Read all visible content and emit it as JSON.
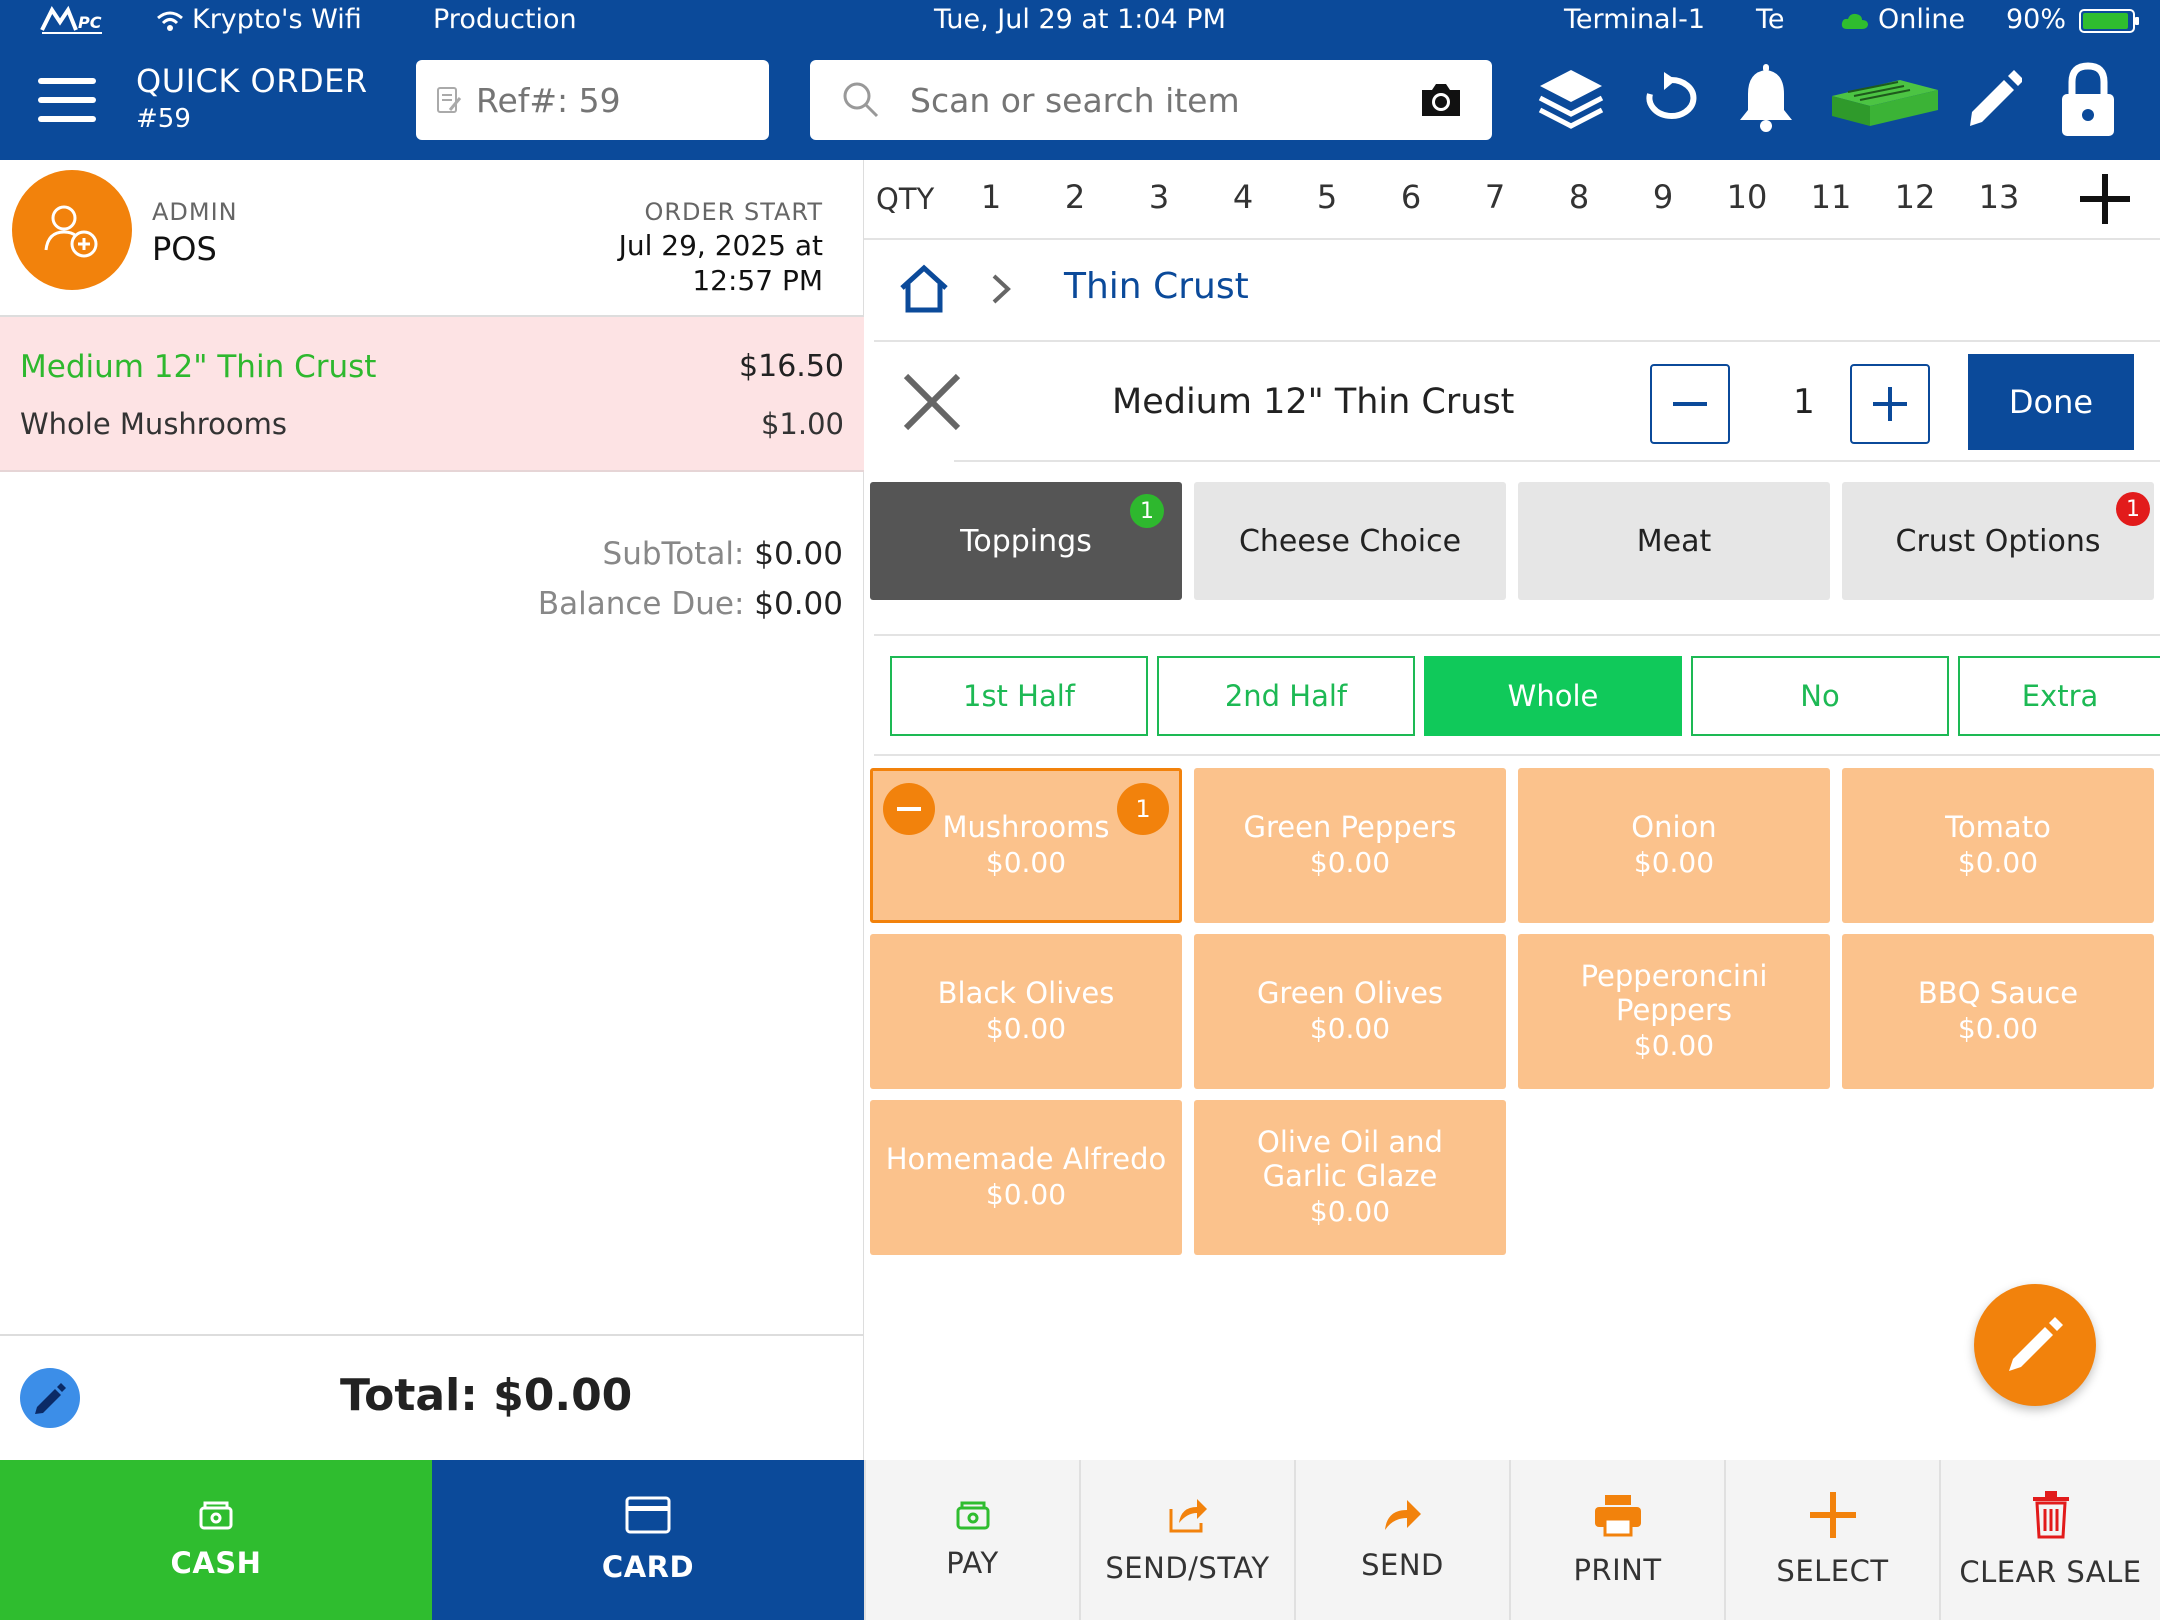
{
  "status_bar": {
    "wifi_name": "Krypto's Wifi",
    "environment": "Production",
    "datetime": "Tue, Jul 29 at 1:04 PM",
    "terminal": "Terminal-1",
    "terminal_truncated": "Te",
    "connection": "Online",
    "battery": "90%"
  },
  "header": {
    "title": "QUICK ORDER",
    "order_number": "#59",
    "ref_placeholder": "Ref#: 59",
    "search_placeholder": "Scan or search item"
  },
  "order_info": {
    "role": "ADMIN",
    "user": "POS",
    "start_label": "ORDER START",
    "start_date": "Jul 29, 2025 at 12:57 PM"
  },
  "order_items": [
    {
      "name": "Medium 12\" Thin Crust",
      "price": "$16.50",
      "modifier": "Whole Mushrooms",
      "modifier_price": "$1.00"
    }
  ],
  "totals": {
    "subtotal_label": "SubTotal:",
    "subtotal": "$0.00",
    "balance_label": "Balance Due:",
    "balance": "$0.00",
    "total_text": "Total: $0.00"
  },
  "qty_bar": {
    "label": "QTY",
    "numbers": [
      "1",
      "2",
      "3",
      "4",
      "5",
      "6",
      "7",
      "8",
      "9",
      "10",
      "11",
      "12",
      "13"
    ]
  },
  "breadcrumb": {
    "current": "Thin Crust"
  },
  "product": {
    "title": "Medium 12\" Thin Crust",
    "quantity": "1",
    "done_label": "Done"
  },
  "categories": [
    {
      "label": "Toppings",
      "active": true,
      "badge": "1",
      "badge_color": "#2eb82e"
    },
    {
      "label": "Cheese Choice",
      "active": false,
      "badge": "",
      "badge_color": ""
    },
    {
      "label": "Meat",
      "active": false,
      "badge": "",
      "badge_color": ""
    },
    {
      "label": "Crust Options",
      "active": false,
      "badge": "1",
      "badge_color": "#e21b1b"
    }
  ],
  "modes": [
    {
      "label": "1st Half",
      "active": false
    },
    {
      "label": "2nd Half",
      "active": false
    },
    {
      "label": "Whole",
      "active": true
    },
    {
      "label": "No",
      "active": false
    },
    {
      "label": "Extra",
      "active": false
    }
  ],
  "toppings": [
    {
      "name": "Mushrooms",
      "price": "$0.00",
      "selected": true,
      "count": "1"
    },
    {
      "name": "Green Peppers",
      "price": "$0.00"
    },
    {
      "name": "Onion",
      "price": "$0.00"
    },
    {
      "name": "Tomato",
      "price": "$0.00"
    },
    {
      "name": "Black Olives",
      "price": "$0.00"
    },
    {
      "name": "Green Olives",
      "price": "$0.00"
    },
    {
      "name": "Pepperoncini Peppers",
      "price": "$0.00"
    },
    {
      "name": "BBQ Sauce",
      "price": "$0.00"
    },
    {
      "name": "Homemade Alfredo",
      "price": "$0.00"
    },
    {
      "name": "Olive Oil and Garlic Glaze",
      "price": "$0.00"
    }
  ],
  "bottom_bar": {
    "cash": "CASH",
    "card": "CARD",
    "pay": "PAY",
    "send_stay": "SEND/STAY",
    "send": "SEND",
    "print": "PRINT",
    "select": "SELECT",
    "clear_sale": "CLEAR SALE"
  },
  "colors": {
    "brand_blue": "#0b4a9a",
    "accent_orange": "#f2820c",
    "tile_orange": "#fbc28c",
    "cash_green": "#2fbd2f",
    "mode_green": "#10c95a",
    "item_green": "#2eb82e"
  }
}
